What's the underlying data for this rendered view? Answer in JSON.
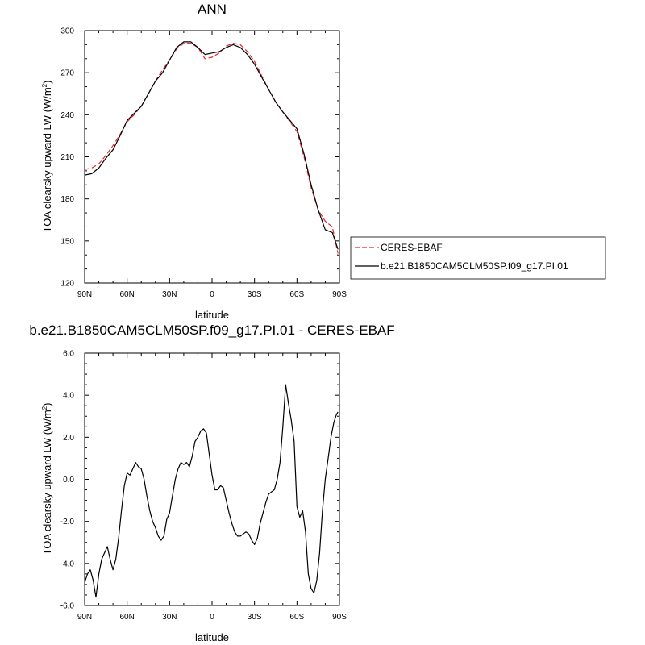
{
  "chart_data": [
    {
      "type": "line",
      "title": "ANN",
      "xlabel": "latitude",
      "ylabel": "TOA clearsky upward LW (W/m",
      "ylabel_sup": "2",
      "ylabel_end": ")",
      "xlim": [
        90,
        -90
      ],
      "ylim": [
        120,
        300
      ],
      "xticks": [
        {
          "v": 90,
          "label": "90N"
        },
        {
          "v": 60,
          "label": "60N"
        },
        {
          "v": 30,
          "label": "30N"
        },
        {
          "v": 0,
          "label": "0"
        },
        {
          "v": -30,
          "label": "30S"
        },
        {
          "v": -60,
          "label": "60S"
        },
        {
          "v": -90,
          "label": "90S"
        }
      ],
      "yticks": [
        {
          "v": 120,
          "label": "120"
        },
        {
          "v": 150,
          "label": "150"
        },
        {
          "v": 180,
          "label": "180"
        },
        {
          "v": 210,
          "label": "210"
        },
        {
          "v": 240,
          "label": "240"
        },
        {
          "v": 270,
          "label": "270"
        },
        {
          "v": 300,
          "label": "300"
        }
      ],
      "legend": {
        "placement": "right, outside plot"
      },
      "series": [
        {
          "name": "CERES-EBAF",
          "color": "#e8262d",
          "dash": "dashed",
          "x": [
            90,
            85,
            80,
            75,
            70,
            65,
            60,
            55,
            50,
            45,
            40,
            35,
            30,
            25,
            20,
            15,
            10,
            5,
            0,
            -5,
            -10,
            -15,
            -20,
            -25,
            -30,
            -35,
            -40,
            -45,
            -50,
            -55,
            -60,
            -65,
            -70,
            -75,
            -80,
            -85,
            -89
          ],
          "y": [
            201,
            202,
            205,
            211,
            218,
            226,
            235,
            240,
            246,
            255,
            264,
            272,
            279,
            287,
            291,
            291,
            288,
            280,
            281,
            284,
            289,
            291,
            290,
            285,
            278,
            268,
            258,
            249,
            242,
            235,
            228,
            210,
            188,
            172,
            164,
            160,
            141
          ]
        },
        {
          "name": "b.e21.B1850CAM5CLM50SP.f09_g17.PI.01",
          "color": "#000000",
          "dash": "solid",
          "x": [
            90,
            85,
            80,
            75,
            70,
            65,
            60,
            55,
            50,
            45,
            40,
            35,
            30,
            25,
            20,
            15,
            10,
            5,
            0,
            -5,
            -10,
            -15,
            -20,
            -25,
            -30,
            -35,
            -40,
            -45,
            -50,
            -55,
            -60,
            -65,
            -70,
            -75,
            -80,
            -85,
            -89
          ],
          "y": [
            197,
            198,
            202,
            209,
            215,
            225,
            236,
            241,
            246,
            255,
            264,
            270,
            279,
            288,
            292,
            292,
            288,
            283,
            284,
            285,
            288,
            290,
            288,
            283,
            276,
            267,
            258,
            249,
            242,
            236,
            230,
            212,
            190,
            172,
            158,
            156,
            144
          ]
        }
      ]
    },
    {
      "type": "line",
      "title": "b.e21.B1850CAM5CLM50SP.f09_g17.PI.01 - CERES-EBAF",
      "xlabel": "latitude",
      "ylabel": "TOA clearsky upward LW (W/m",
      "ylabel_sup": "2",
      "ylabel_end": ")",
      "xlim": [
        90,
        -90
      ],
      "ylim": [
        -6,
        6
      ],
      "xticks": [
        {
          "v": 90,
          "label": "90N"
        },
        {
          "v": 60,
          "label": "60N"
        },
        {
          "v": 30,
          "label": "30N"
        },
        {
          "v": 0,
          "label": "0"
        },
        {
          "v": -30,
          "label": "30S"
        },
        {
          "v": -60,
          "label": "60S"
        },
        {
          "v": -90,
          "label": "90S"
        }
      ],
      "yticks": [
        {
          "v": -6,
          "label": "-6.0"
        },
        {
          "v": -4,
          "label": "-4.0"
        },
        {
          "v": -2,
          "label": "-2.0"
        },
        {
          "v": 0,
          "label": "0.0"
        },
        {
          "v": 2,
          "label": "2.0"
        },
        {
          "v": 4,
          "label": "4.0"
        },
        {
          "v": 6,
          "label": "6.0"
        }
      ],
      "series": [
        {
          "color": "#000000",
          "x": [
            90,
            88,
            86,
            84,
            82,
            80,
            78,
            76,
            74,
            72,
            70,
            68,
            66,
            64,
            62,
            60,
            58,
            56,
            54,
            52,
            50,
            48,
            46,
            44,
            42,
            40,
            38,
            36,
            34,
            32,
            30,
            28,
            26,
            24,
            22,
            20,
            18,
            16,
            14,
            12,
            10,
            8,
            6,
            4,
            2,
            0,
            -2,
            -4,
            -6,
            -8,
            -10,
            -12,
            -14,
            -16,
            -18,
            -20,
            -22,
            -24,
            -26,
            -28,
            -30,
            -32,
            -34,
            -36,
            -38,
            -40,
            -42,
            -44,
            -46,
            -48,
            -50,
            -52,
            -54,
            -56,
            -58,
            -60,
            -62,
            -64,
            -66,
            -68,
            -70,
            -72,
            -74,
            -76,
            -78,
            -80,
            -82,
            -84,
            -86,
            -88,
            -89
          ],
          "y": [
            -4.9,
            -4.5,
            -4.3,
            -4.8,
            -5.6,
            -4.5,
            -3.8,
            -3.5,
            -3.2,
            -3.8,
            -4.3,
            -3.8,
            -2.8,
            -1.5,
            -0.3,
            0.3,
            0.2,
            0.5,
            0.8,
            0.6,
            0.5,
            0.0,
            -0.8,
            -1.5,
            -2.0,
            -2.3,
            -2.7,
            -2.9,
            -2.7,
            -1.9,
            -1.6,
            -0.8,
            0.0,
            0.5,
            0.8,
            0.7,
            0.8,
            0.6,
            1.1,
            1.8,
            2.0,
            2.3,
            2.4,
            2.2,
            1.2,
            0.2,
            -0.5,
            -0.5,
            -0.3,
            -0.4,
            -1.0,
            -1.6,
            -2.1,
            -2.5,
            -2.7,
            -2.7,
            -2.6,
            -2.5,
            -2.6,
            -2.9,
            -3.1,
            -2.8,
            -2.1,
            -1.6,
            -1.1,
            -0.7,
            -0.6,
            -0.5,
            0.0,
            0.8,
            2.5,
            4.5,
            3.6,
            2.8,
            1.8,
            -1.3,
            -1.8,
            -1.5,
            -2.5,
            -4.5,
            -5.2,
            -5.4,
            -4.8,
            -3.5,
            -1.5,
            0.0,
            1.0,
            2.0,
            2.7,
            3.1,
            3.2
          ]
        }
      ]
    }
  ]
}
